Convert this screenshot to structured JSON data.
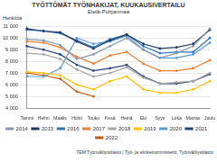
{
  "chart_data": {
    "type": "line",
    "title": "TYÖTTÖMÄT TYÖNHAKIJAT, KUUKAUSIVERTAILU",
    "subtitle": "Etelä-Pohjanmaa",
    "y_label": "Henkilöä",
    "annotations": [
      "TEM Työnvälitystilasto / Työ- ja elinkeinoministeriö, Työnvälitystilasto"
    ],
    "categories": [
      "Tammi",
      "Helmi",
      "Maalis",
      "Huhti",
      "Touko",
      "Kesä",
      "Heinä",
      "Elo",
      "Syys",
      "Loka",
      "Marras",
      "Joulu"
    ],
    "series": [
      {
        "name": "2014",
        "color": "#8497b0",
        "values": [
          9900,
          9800,
          9400,
          8200,
          8600,
          9300,
          10000,
          9000,
          8300,
          8700,
          9300,
          10800
        ]
      },
      {
        "name": "2015",
        "color": "#1f3864",
        "values": [
          10800,
          10600,
          10500,
          9700,
          9100,
          9800,
          10300,
          9500,
          9100,
          9200,
          9500,
          10700
        ]
      },
      {
        "name": "2016",
        "color": "#2e75b6",
        "values": [
          10700,
          10600,
          10400,
          9800,
          9200,
          9900,
          10300,
          9300,
          8700,
          8800,
          8800,
          10000
        ]
      },
      {
        "name": "2017",
        "color": "#ed7d31",
        "values": [
          9700,
          9600,
          9200,
          8400,
          7800,
          8500,
          8800,
          7800,
          7200,
          7200,
          7400,
          8100
        ]
      },
      {
        "name": "2018",
        "color": "#a5a5a5",
        "values": [
          8700,
          8600,
          8200,
          7300,
          6700,
          7000,
          7500,
          6600,
          6100,
          6200,
          6300,
          7000
        ]
      },
      {
        "name": "2019",
        "color": "#ffc000",
        "values": [
          7100,
          7000,
          6800,
          6000,
          5600,
          6300,
          6700,
          5600,
          5300,
          5300,
          5600,
          6300
        ]
      },
      {
        "name": "2020",
        "color": "#5b9bd5",
        "values": [
          6700,
          6700,
          7400,
          10000,
          9500,
          9700,
          10200,
          9000,
          8300,
          8300,
          8600,
          9600
        ]
      },
      {
        "name": "2021",
        "color": "#264478",
        "values": [
          9300,
          9000,
          8600,
          7700,
          7200,
          7400,
          7700,
          6700,
          6100,
          6100,
          6300,
          6900
        ]
      },
      {
        "name": "2022",
        "color": "#c55a11",
        "values": [
          7000,
          6800,
          6500,
          5400,
          5000,
          null,
          null,
          null,
          null,
          null,
          null,
          null
        ]
      }
    ],
    "ylim": [
      4000,
      11000
    ],
    "yticks": [
      {
        "value": 4000,
        "label": "4 000"
      },
      {
        "value": 5000,
        "label": "5 000"
      },
      {
        "value": 6000,
        "label": "6 000"
      },
      {
        "value": 7000,
        "label": "7 000"
      },
      {
        "value": 8000,
        "label": "8 000"
      },
      {
        "value": 9000,
        "label": "9 000"
      },
      {
        "value": 10000,
        "label": "10 000"
      },
      {
        "value": 11000,
        "label": "11 000"
      }
    ],
    "grid": true,
    "legend": "bottom",
    "marker": "circle"
  }
}
